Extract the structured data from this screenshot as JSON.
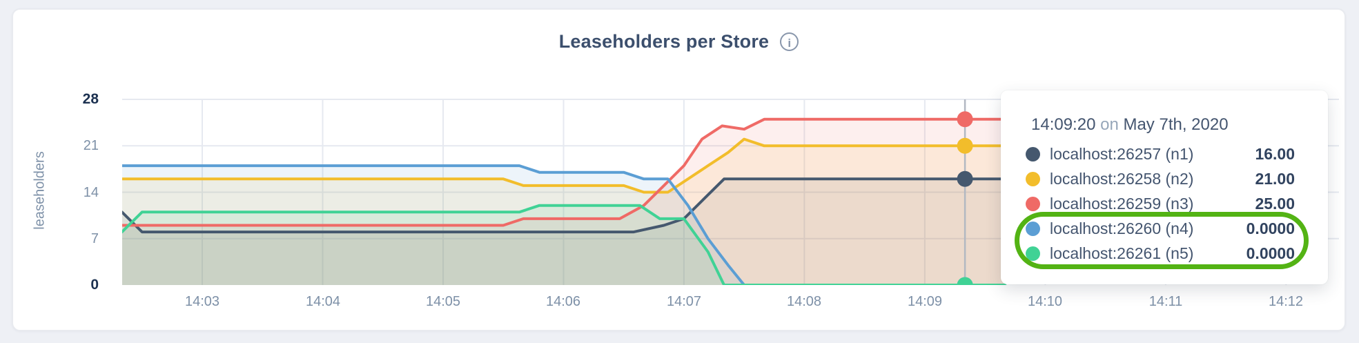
{
  "page": {
    "background": "#eef0f5"
  },
  "card": {
    "background": "#ffffff",
    "border_color": "#e8eaef"
  },
  "header": {
    "title": "Leaseholders per Store",
    "info_icon_glyph": "i"
  },
  "chart_data": {
    "type": "area",
    "title": "Leaseholders per Store",
    "xlabel": "",
    "ylabel": "leaseholders",
    "ylim": [
      0,
      28
    ],
    "grid": true,
    "x_start": "14:02:20",
    "x_end": "14:12:00",
    "time_unit": "seconds after 14:02:20",
    "yticks": [
      {
        "label": "0",
        "value": 0,
        "strong": true
      },
      {
        "label": "7",
        "value": 7,
        "strong": false
      },
      {
        "label": "14",
        "value": 14,
        "strong": false
      },
      {
        "label": "21",
        "value": 21,
        "strong": false
      },
      {
        "label": "28",
        "value": 28,
        "strong": true
      }
    ],
    "xticks": [
      {
        "label": "14:03",
        "t": 40
      },
      {
        "label": "14:04",
        "t": 100
      },
      {
        "label": "14:05",
        "t": 160
      },
      {
        "label": "14:06",
        "t": 220
      },
      {
        "label": "14:07",
        "t": 280
      },
      {
        "label": "14:08",
        "t": 340
      },
      {
        "label": "14:09",
        "t": 400
      },
      {
        "label": "14:10",
        "t": 460
      },
      {
        "label": "14:11",
        "t": 520
      },
      {
        "label": "14:12",
        "t": 580
      }
    ],
    "series": [
      {
        "name": "localhost:26257 (n1)",
        "color": "#45586e",
        "points": [
          [
            0,
            11
          ],
          [
            10,
            8
          ],
          [
            255,
            8
          ],
          [
            270,
            9
          ],
          [
            280,
            10
          ],
          [
            290,
            13
          ],
          [
            300,
            16
          ],
          [
            440,
            16
          ]
        ]
      },
      {
        "name": "localhost:26258 (n2)",
        "color": "#f2bd2b",
        "points": [
          [
            0,
            16
          ],
          [
            190,
            16
          ],
          [
            200,
            15
          ],
          [
            250,
            15
          ],
          [
            260,
            14
          ],
          [
            272,
            14
          ],
          [
            282,
            16
          ],
          [
            292,
            18
          ],
          [
            302,
            20
          ],
          [
            310,
            22
          ],
          [
            320,
            21
          ],
          [
            440,
            21
          ]
        ]
      },
      {
        "name": "localhost:26259 (n3)",
        "color": "#ef6a66",
        "points": [
          [
            0,
            9
          ],
          [
            190,
            9
          ],
          [
            200,
            10
          ],
          [
            248,
            10
          ],
          [
            260,
            12
          ],
          [
            270,
            15
          ],
          [
            280,
            18
          ],
          [
            289,
            22
          ],
          [
            299,
            24
          ],
          [
            310,
            23.5
          ],
          [
            320,
            25
          ],
          [
            440,
            25
          ]
        ]
      },
      {
        "name": "localhost:26260 (n4)",
        "color": "#5b9ed4",
        "points": [
          [
            0,
            18
          ],
          [
            198,
            18
          ],
          [
            208,
            17
          ],
          [
            250,
            17
          ],
          [
            260,
            16
          ],
          [
            272,
            16
          ],
          [
            282,
            12
          ],
          [
            292,
            7
          ],
          [
            302,
            3
          ],
          [
            310,
            0
          ],
          [
            440,
            0
          ]
        ]
      },
      {
        "name": "localhost:26261 (n5)",
        "color": "#40d295",
        "points": [
          [
            0,
            8
          ],
          [
            10,
            11
          ],
          [
            198,
            11
          ],
          [
            208,
            12
          ],
          [
            258,
            12
          ],
          [
            268,
            10
          ],
          [
            280,
            10
          ],
          [
            292,
            5
          ],
          [
            300,
            0
          ],
          [
            440,
            0
          ]
        ]
      }
    ],
    "hover": {
      "time": "14:09:20",
      "t": 420,
      "values": [
        16,
        21,
        25,
        0,
        0
      ]
    }
  },
  "tooltip": {
    "time": "14:09:20",
    "preposition": "on",
    "date": "May 7th, 2020",
    "rows": [
      {
        "label": "localhost:26257 (n1)",
        "value": "16.00",
        "color": "#45586e"
      },
      {
        "label": "localhost:26258 (n2)",
        "value": "21.00",
        "color": "#f2bd2b"
      },
      {
        "label": "localhost:26259 (n3)",
        "value": "25.00",
        "color": "#ef6a66"
      },
      {
        "label": "localhost:26260 (n4)",
        "value": "0.0000",
        "color": "#5b9ed4"
      },
      {
        "label": "localhost:26261 (n5)",
        "value": "0.0000",
        "color": "#40d295"
      }
    ]
  },
  "annotation": {
    "shape": "rounded-ellipse",
    "color": "#53b314",
    "highlighted_rows": [
      "localhost:26260 (n4)",
      "localhost:26261 (n5)"
    ]
  }
}
